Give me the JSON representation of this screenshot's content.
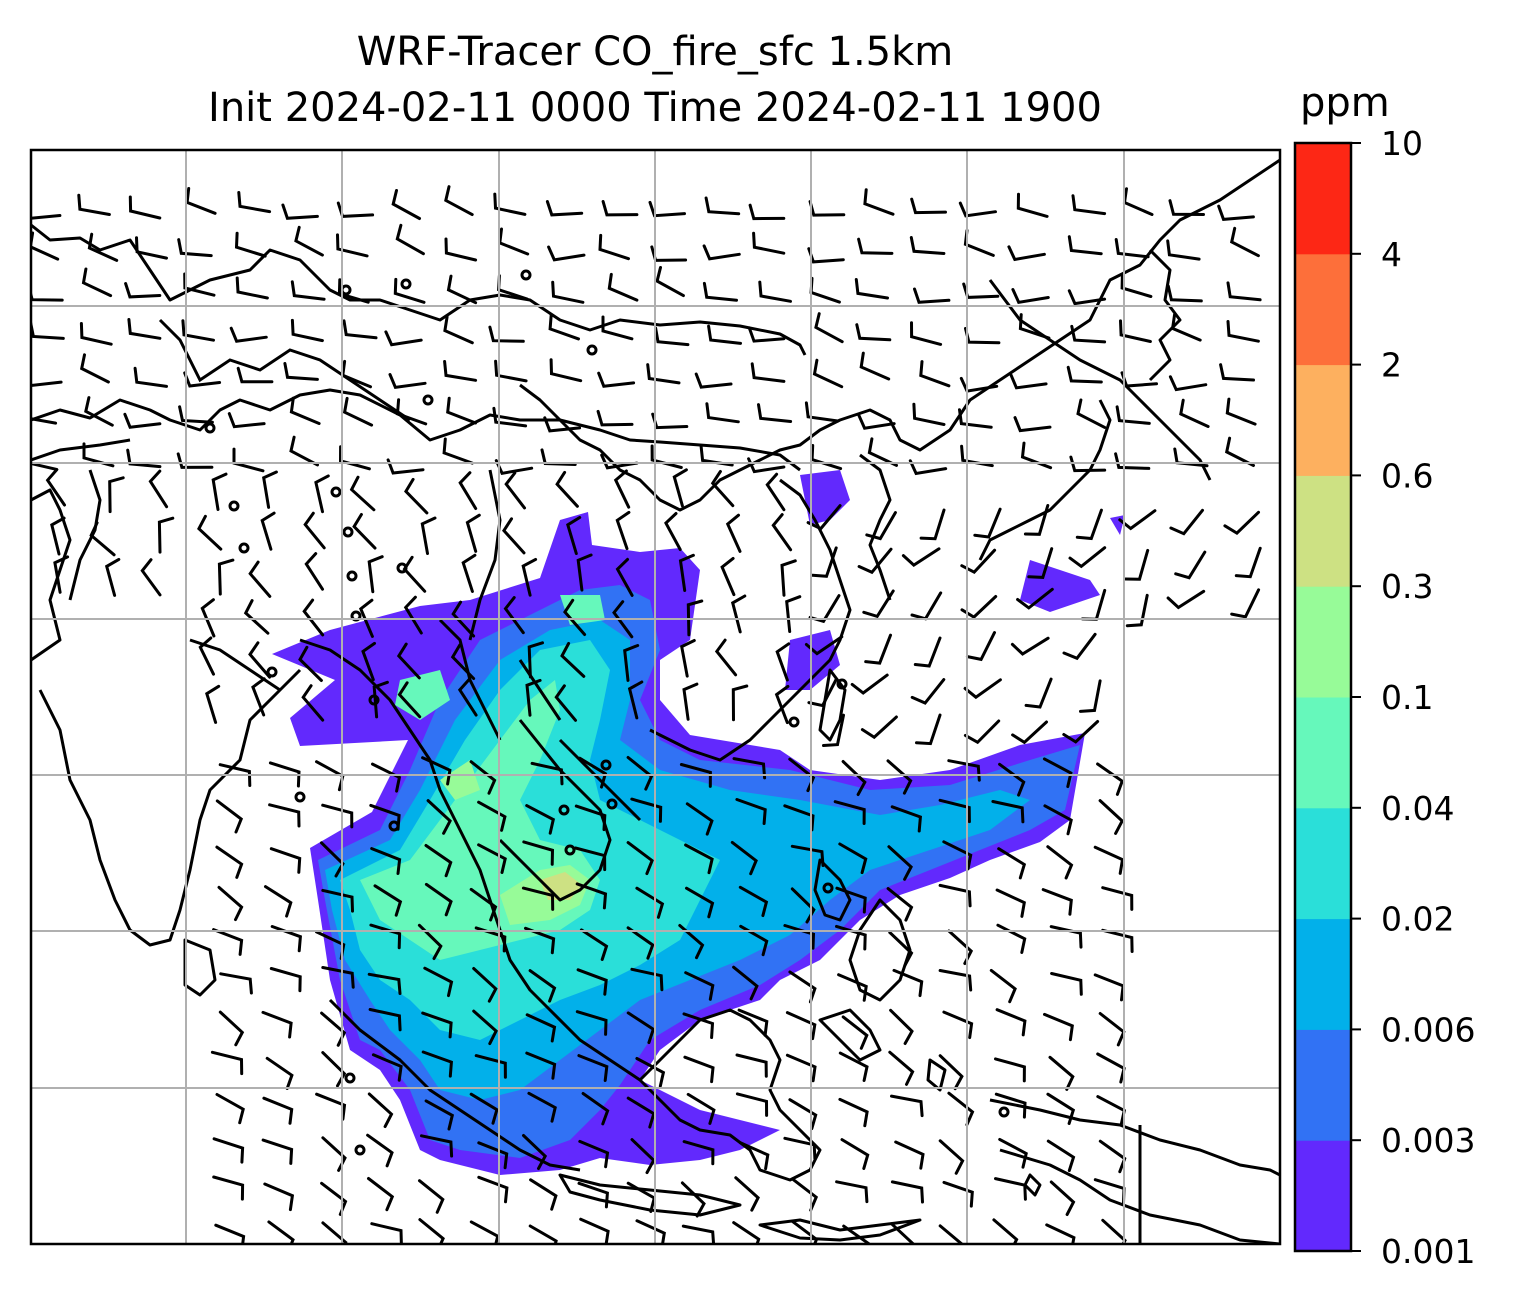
{
  "title": {
    "line1": "WRF-Tracer CO_fire_sfc 1.5km",
    "line2": "Init 2024-02-11 0000 Time 2024-02-11 1900"
  },
  "colorbar": {
    "units": "ppm",
    "levels": [
      "0.001",
      "0.003",
      "0.006",
      "0.02",
      "0.04",
      "0.1",
      "0.3",
      "0.6",
      "2",
      "4",
      "10"
    ],
    "colors": [
      "#6229fd",
      "#3172f4",
      "#02b0ea",
      "#2adfd9",
      "#66f8bb",
      "#97fb98",
      "#cde183",
      "#fdb05f",
      "#fd6f3a",
      "#fd2715"
    ]
  },
  "map": {
    "layers": [
      "coastlines",
      "country-borders",
      "gridlines",
      "CO_fire_sfc filled contours",
      "wind barbs"
    ]
  }
}
